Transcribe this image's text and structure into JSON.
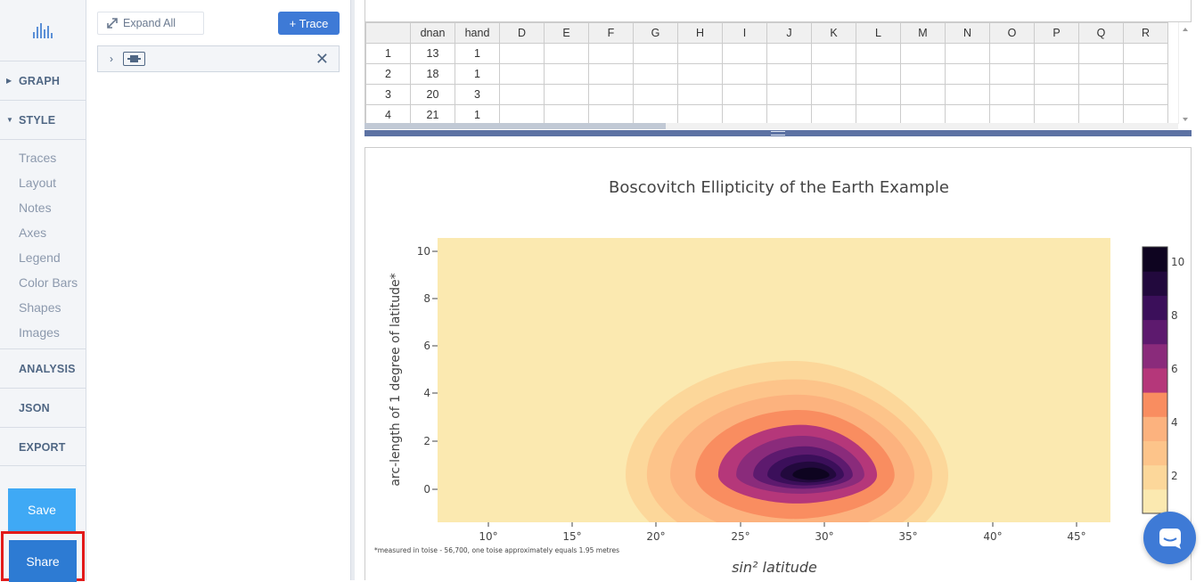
{
  "sidebar": {
    "sections": [
      {
        "label": "GRAPH",
        "caret": "▶"
      },
      {
        "label": "STYLE",
        "caret": "▼"
      }
    ],
    "style_items": [
      "Traces",
      "Layout",
      "Notes",
      "Axes",
      "Legend",
      "Color Bars",
      "Shapes",
      "Images"
    ],
    "bottom_sections": [
      "ANALYSIS",
      "JSON",
      "EXPORT"
    ],
    "save_label": "Save",
    "share_label": "Share"
  },
  "panel": {
    "expand_all_label": "Expand All",
    "add_trace_label": "+ Trace"
  },
  "grid": {
    "columns": [
      "",
      "dnan",
      "hand",
      "D",
      "E",
      "F",
      "G",
      "H",
      "I",
      "J",
      "K",
      "L",
      "M",
      "N",
      "O",
      "P",
      "Q",
      "R"
    ],
    "rows": [
      [
        "1",
        "13",
        "1"
      ],
      [
        "2",
        "18",
        "1"
      ],
      [
        "3",
        "20",
        "3"
      ],
      [
        "4",
        "21",
        "1"
      ]
    ]
  },
  "chart_data": {
    "type": "contour",
    "title": "Boscovitch Ellipticity of the Earth Example",
    "xlabel": "sin² latitude",
    "ylabel": "arc-length of 1 degree of latitude*",
    "x_ticks": [
      "10°",
      "15°",
      "20°",
      "25°",
      "30°",
      "35°",
      "40°",
      "45°"
    ],
    "y_ticks": [
      "0",
      "2",
      "4",
      "6",
      "8",
      "10"
    ],
    "colorbar_ticks": [
      "2",
      "4",
      "6",
      "8",
      "10"
    ],
    "colorscale": [
      "#fbe9b0",
      "#fcd79a",
      "#fdc48a",
      "#fcb27e",
      "#f98d60",
      "#b5377a",
      "#8a2b7b",
      "#5d1a6e",
      "#3b0f5a",
      "#22093d",
      "#0e0420"
    ],
    "annotation": "*measured in toise - 56,700, one toise approximately equals 1.95 metres"
  }
}
